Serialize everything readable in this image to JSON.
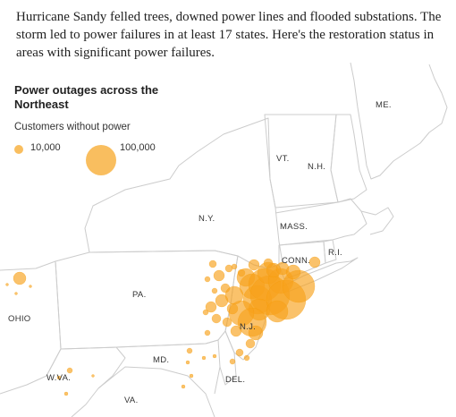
{
  "intro": "Hurricane Sandy felled trees, downed power lines and flooded substations. The storm led to power failures in at least 17 states. Here's the restoration status in areas with significant power failures.",
  "legend": {
    "title": "Power outages across the Northeast",
    "subtitle": "Customers without power",
    "small_label": "10,000",
    "large_label": "100,000"
  },
  "colors": {
    "bubble": "#f7a21b",
    "bubble_stroke": "#f59a00",
    "state_border": "#cccccc"
  },
  "states": {
    "me": "ME.",
    "vt": "VT.",
    "nh": "N.H.",
    "ny": "N.Y.",
    "mass": "MASS.",
    "ri": "R.I.",
    "conn": "CONN.",
    "pa": "PA.",
    "nj": "N.J.",
    "ohio": "OHIO",
    "md": "MD.",
    "del": "DEL.",
    "wva": "W.VA.",
    "va": "VA."
  }
}
